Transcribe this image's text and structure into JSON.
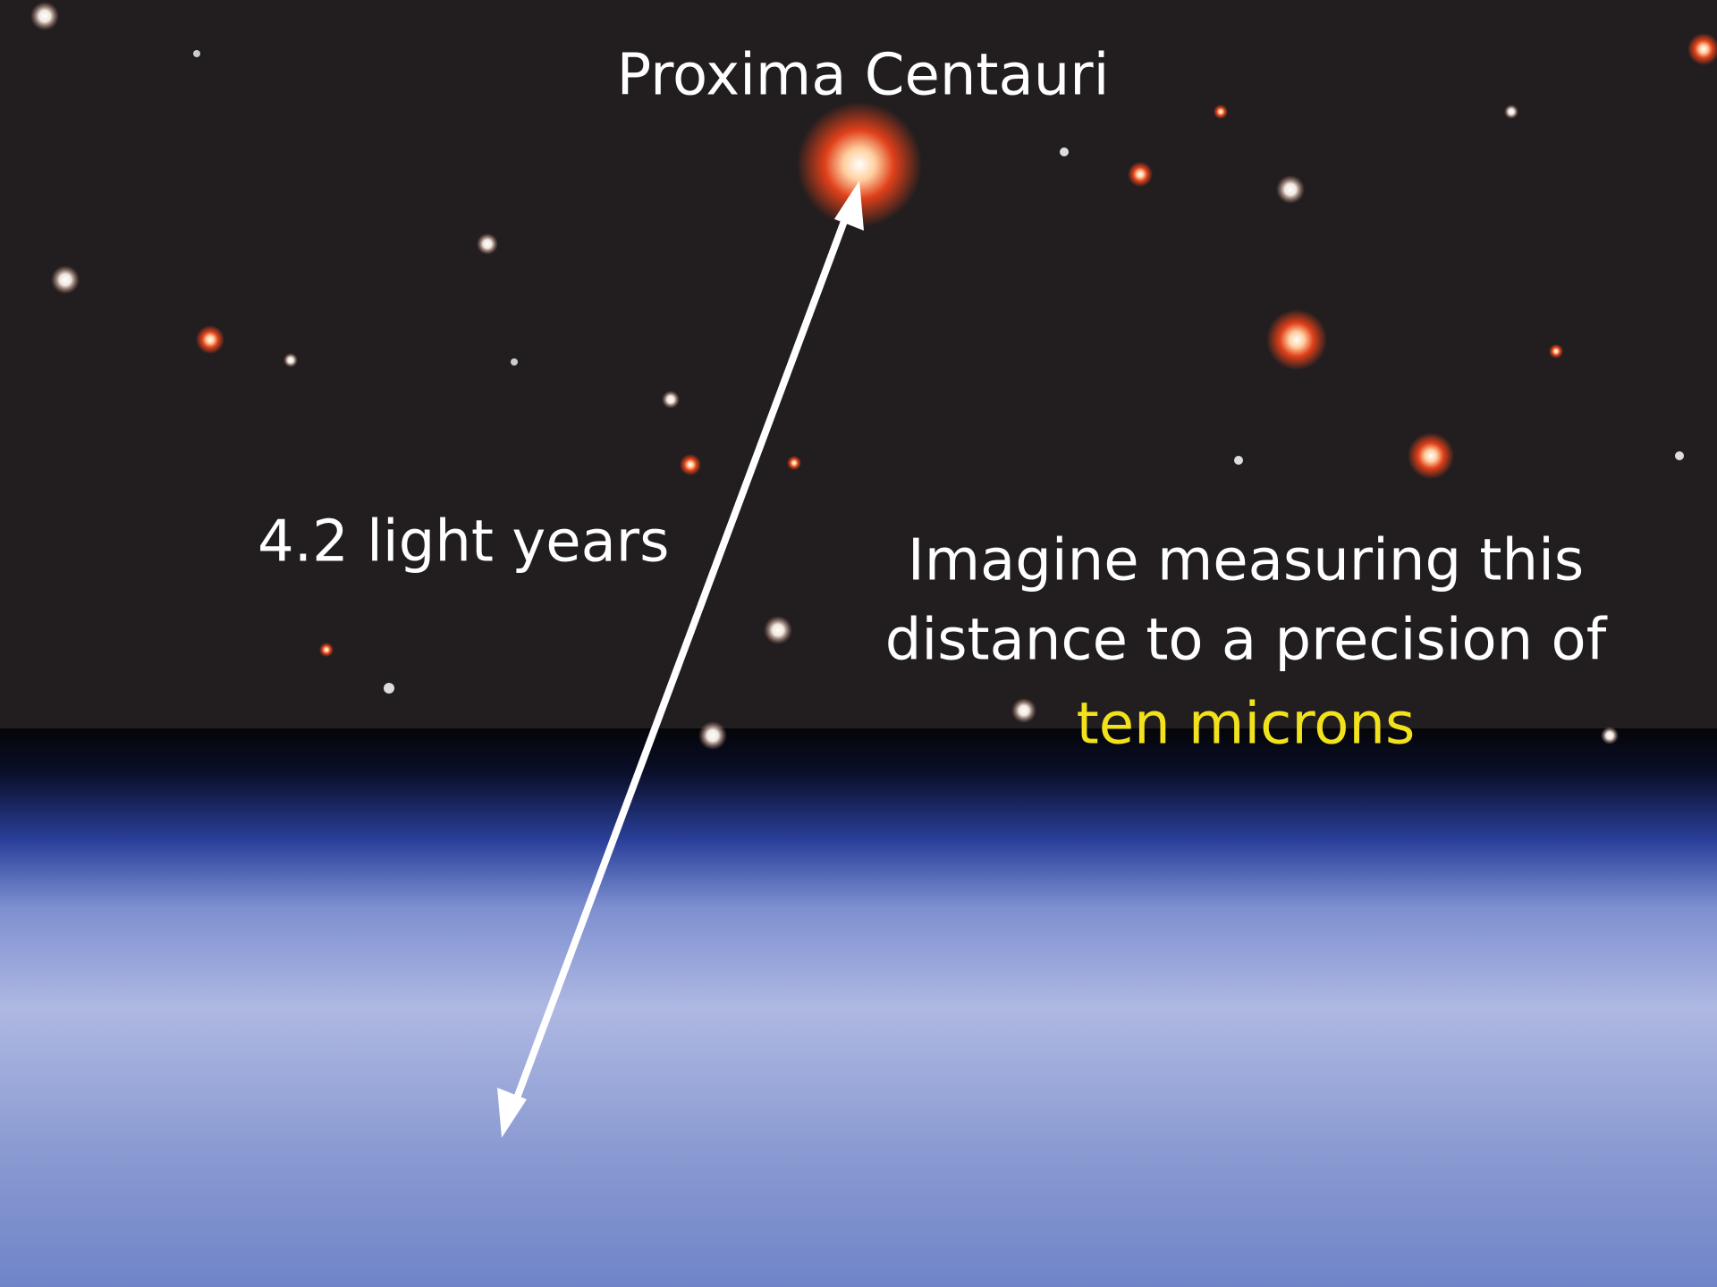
{
  "title": "Proxima Centauri",
  "distance_label": "4.2 light years",
  "caption": {
    "lines": [
      "Imagine measuring this",
      "distance to a precision of"
    ],
    "highlight": "ten microns"
  }
}
